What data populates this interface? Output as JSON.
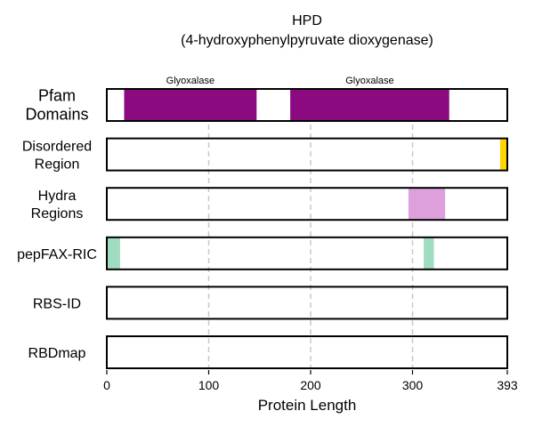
{
  "chart_data": {
    "type": "bar",
    "title": "HPD",
    "subtitle": "(4-hydroxyphenylpyruvate dioxygenase)",
    "xlabel": "Protein Length",
    "xlim": [
      0,
      393
    ],
    "xticks": [
      0,
      100,
      200,
      300,
      393
    ],
    "grid": "dashed vertical lines at 100, 200, 300",
    "tracks": [
      {
        "label": [
          "Pfam",
          "Domains"
        ],
        "label_style": "large",
        "segments": [
          {
            "start": 17,
            "end": 147,
            "color": "#8B0A80",
            "label": "Glyoxalase"
          },
          {
            "start": 180,
            "end": 336,
            "color": "#8B0A80",
            "label": "Glyoxalase"
          }
        ]
      },
      {
        "label": [
          "Disordered",
          "Region"
        ],
        "segments": [
          {
            "start": 386,
            "end": 393,
            "color": "#FFD700"
          }
        ]
      },
      {
        "label": [
          "Hydra",
          "Regions"
        ],
        "segments": [
          {
            "start": 296,
            "end": 332,
            "color": "#DDA0DD"
          }
        ]
      },
      {
        "label": [
          "pepFAX-RIC"
        ],
        "segments": [
          {
            "start": 0,
            "end": 13,
            "color": "#A0DDC0"
          },
          {
            "start": 311,
            "end": 321,
            "color": "#A0DDC0"
          }
        ]
      },
      {
        "label": [
          "RBS-ID"
        ],
        "segments": []
      },
      {
        "label": [
          "RBDmap"
        ],
        "segments": []
      }
    ]
  }
}
